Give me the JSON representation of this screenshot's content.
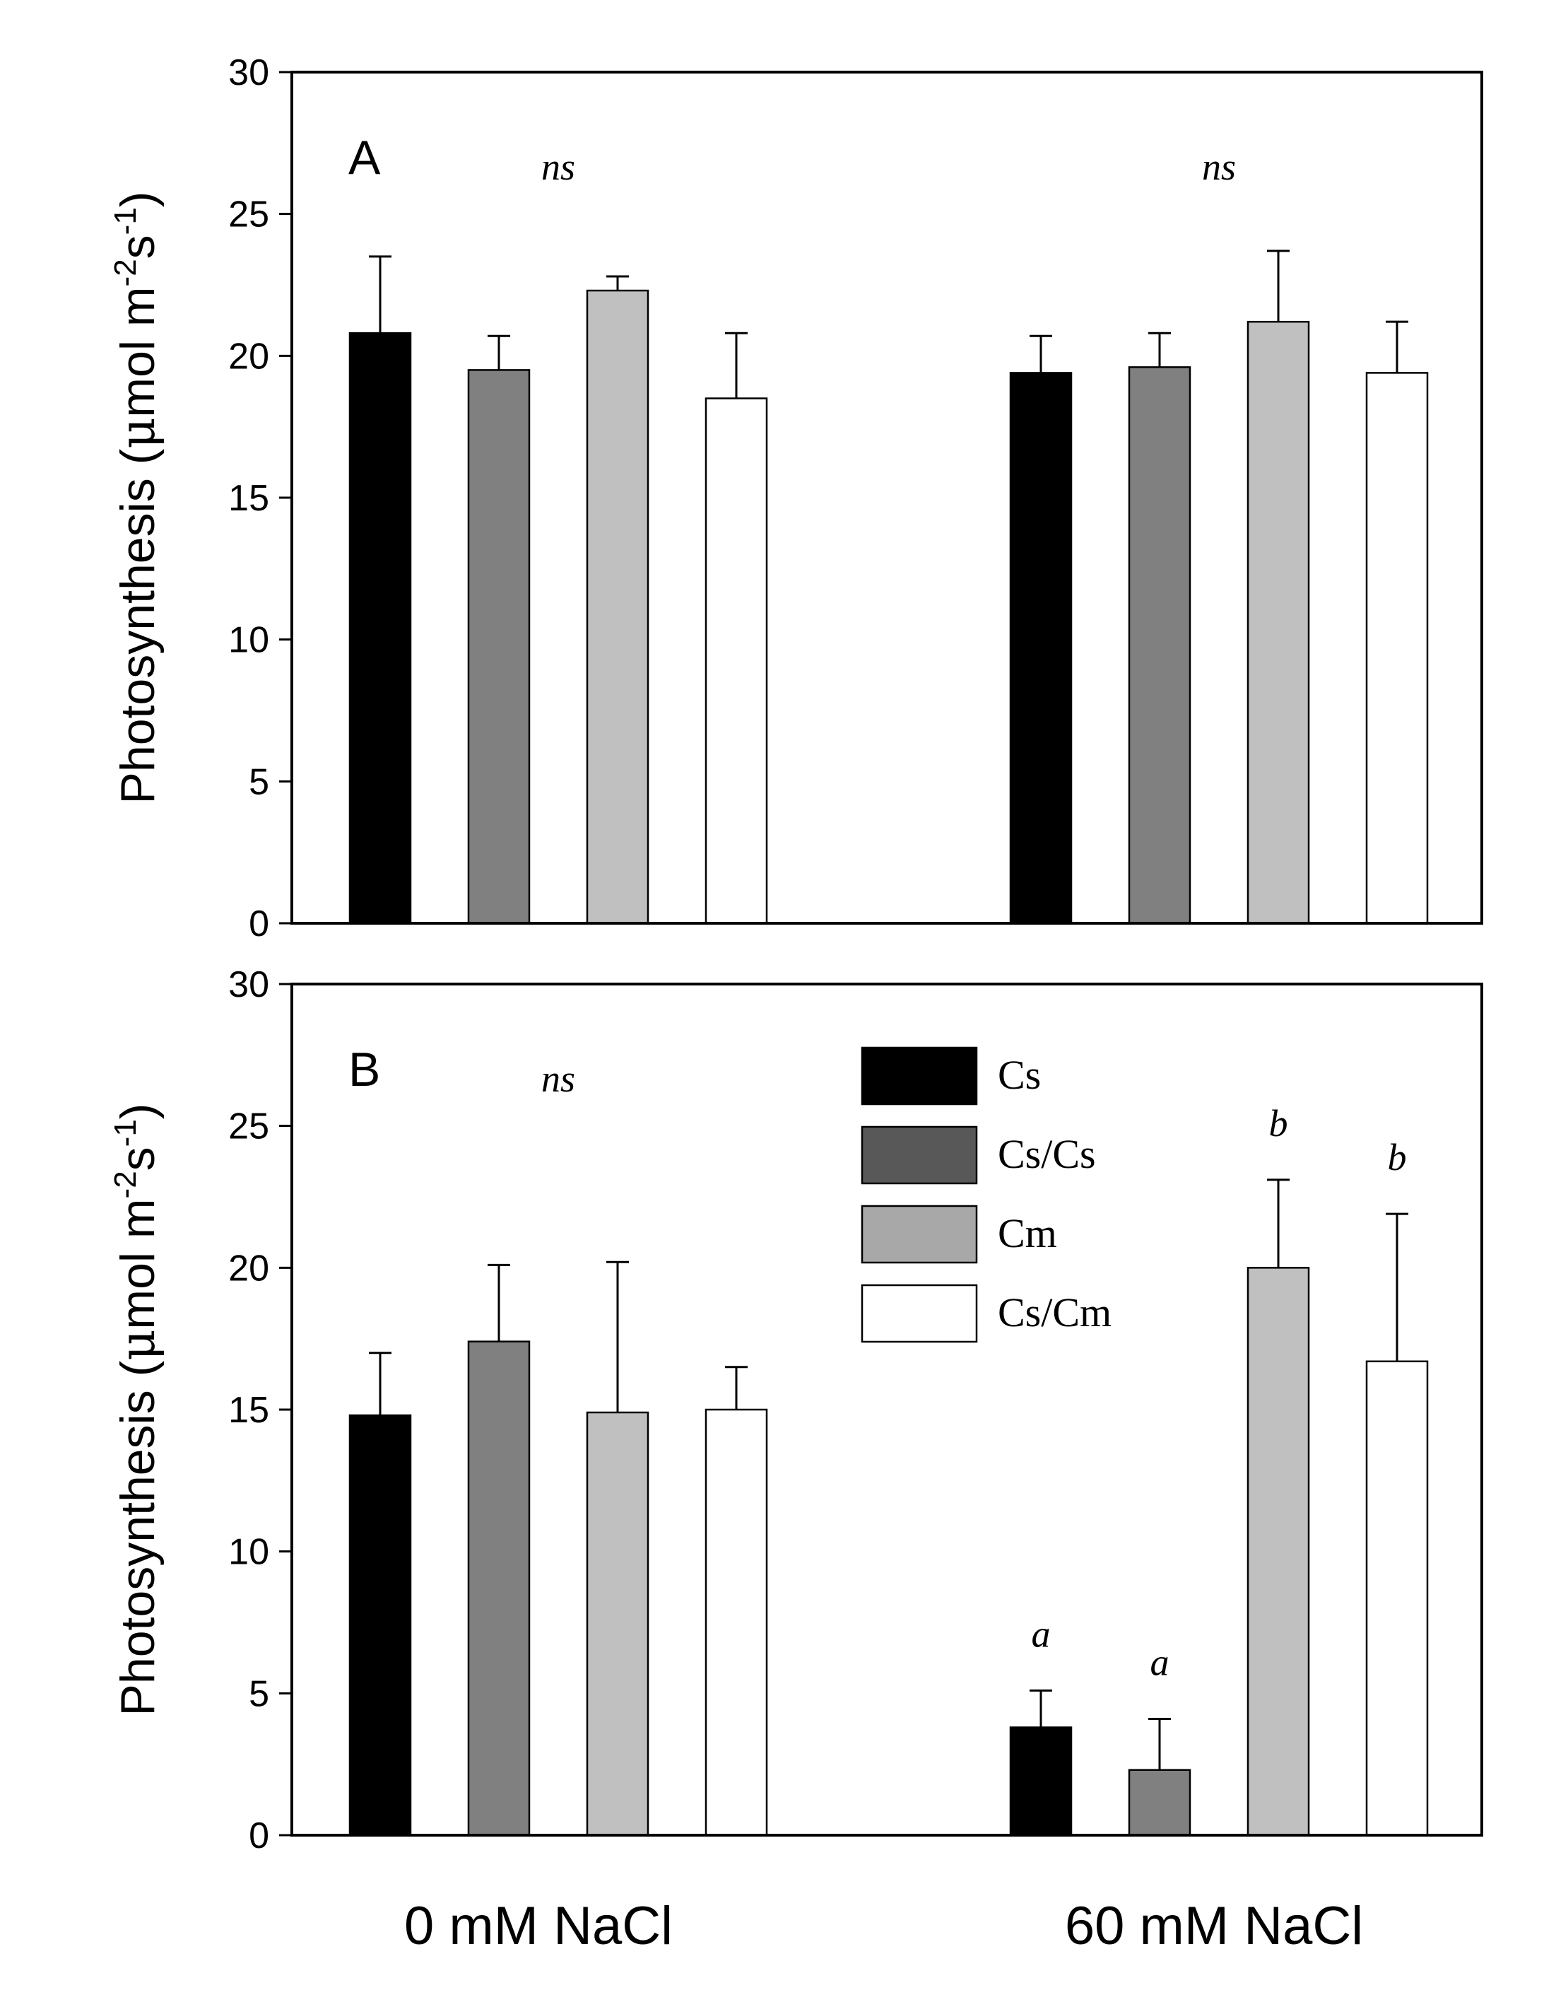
{
  "chart_data": [
    {
      "type": "bar",
      "panel": "A",
      "panel_label": "A",
      "ylabel": "Photosynthesis (μmol m⁻²s⁻¹)",
      "ylabel_main": "Photosynthesis (",
      "ylabel_mu": "μ",
      "ylabel_unit_1": "mol m",
      "ylabel_exp_1": "-2",
      "ylabel_unit_2": "s",
      "ylabel_exp_2": "-1",
      "ylabel_close": ")",
      "ylim": [
        0,
        30
      ],
      "yticks": [
        "0",
        "5",
        "10",
        "15",
        "20",
        "25",
        "30"
      ],
      "categories": [
        "0 mM NaCl",
        "60 mM NaCl"
      ],
      "series": [
        {
          "name": "Cs",
          "color": "#000000",
          "values": [
            20.8,
            19.4
          ],
          "errors": [
            2.7,
            1.3
          ]
        },
        {
          "name": "Cs/Cs",
          "color": "#808080",
          "values": [
            19.5,
            19.6
          ],
          "errors": [
            1.2,
            1.2
          ]
        },
        {
          "name": "Cm",
          "color": "#c0c0c0",
          "values": [
            22.3,
            21.2
          ],
          "errors": [
            0.5,
            2.5
          ]
        },
        {
          "name": "Cs/Cm",
          "color": "#ffffff",
          "values": [
            18.5,
            19.4
          ],
          "errors": [
            2.3,
            1.8
          ]
        }
      ],
      "significance": [
        {
          "group": 0,
          "label": "ns"
        },
        {
          "group": 1,
          "label": "ns"
        }
      ],
      "bar_letters": []
    },
    {
      "type": "bar",
      "panel": "B",
      "panel_label": "B",
      "ylabel": "Photosynthesis (μmol m⁻²s⁻¹)",
      "ylabel_main": "Photosynthesis (",
      "ylabel_mu": "μ",
      "ylabel_unit_1": "mol m",
      "ylabel_exp_1": "-2",
      "ylabel_unit_2": "s",
      "ylabel_exp_2": "-1",
      "ylabel_close": ")",
      "ylim": [
        0,
        30
      ],
      "yticks": [
        "0",
        "5",
        "10",
        "15",
        "20",
        "25",
        "30"
      ],
      "categories": [
        "0 mM NaCl",
        "60 mM NaCl"
      ],
      "series": [
        {
          "name": "Cs",
          "color": "#000000",
          "values": [
            14.8,
            3.8
          ],
          "errors": [
            2.2,
            1.3
          ]
        },
        {
          "name": "Cs/Cs",
          "color": "#808080",
          "values": [
            17.4,
            2.3
          ],
          "errors": [
            2.7,
            1.8
          ]
        },
        {
          "name": "Cm",
          "color": "#c0c0c0",
          "values": [
            14.9,
            20.0
          ],
          "errors": [
            5.3,
            3.1
          ]
        },
        {
          "name": "Cs/Cm",
          "color": "#ffffff",
          "values": [
            15.0,
            16.7
          ],
          "errors": [
            1.5,
            5.2
          ]
        }
      ],
      "significance": [
        {
          "group": 0,
          "label": "ns"
        }
      ],
      "bar_letters": [
        {
          "group": 1,
          "series": 0,
          "label": "a"
        },
        {
          "group": 1,
          "series": 1,
          "label": "a"
        },
        {
          "group": 1,
          "series": 2,
          "label": "b"
        },
        {
          "group": 1,
          "series": 3,
          "label": "b"
        }
      ],
      "legend": {
        "position": "top-right",
        "entries": [
          {
            "label": "Cs",
            "color": "#000000"
          },
          {
            "label": "Cs/Cs",
            "color": "#585858"
          },
          {
            "label": "Cm",
            "color": "#a8a8a8"
          },
          {
            "label": "Cs/Cm",
            "color": "#ffffff"
          }
        ]
      }
    }
  ]
}
